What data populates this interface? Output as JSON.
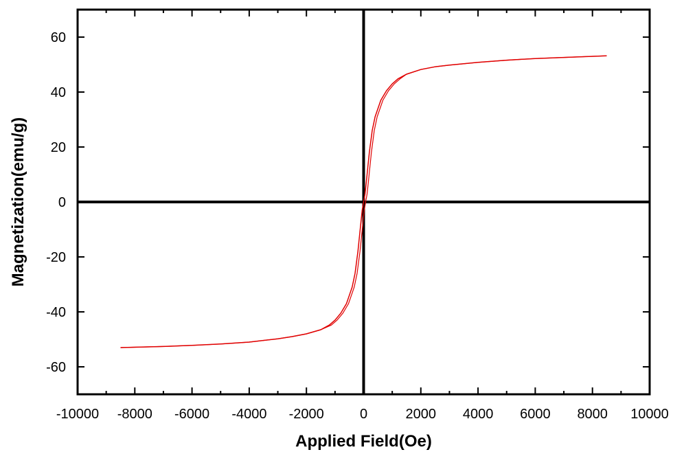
{
  "chart_data": {
    "type": "line",
    "title": "",
    "xlabel": "Applied Field(Oe)",
    "ylabel": "Magnetization(emu/g)",
    "xlim": [
      -10000,
      10000
    ],
    "ylim": [
      -70,
      70
    ],
    "x_ticks": [
      -10000,
      -8000,
      -6000,
      -4000,
      -2000,
      0,
      2000,
      4000,
      6000,
      8000,
      10000
    ],
    "y_ticks": [
      -60,
      -40,
      -20,
      0,
      20,
      40,
      60
    ],
    "x_tick_labels": [
      "-10000",
      "-8000",
      "-6000",
      "-4000",
      "-2000",
      "0",
      "2000",
      "4000",
      "6000",
      "8000",
      "10000"
    ],
    "y_tick_labels": [
      "-60",
      "-40",
      "-20",
      "0",
      "20",
      "40",
      "60"
    ],
    "zero_lines": true,
    "grid": false,
    "series": [
      {
        "color": "#e00000",
        "x": [
          -8500,
          -7000,
          -6000,
          -5000,
          -4000,
          -3000,
          -2500,
          -2000,
          -1500,
          -1200,
          -1000,
          -800,
          -600,
          -400,
          -300,
          -200,
          -100,
          -50,
          0,
          50,
          100,
          200,
          300,
          400,
          600,
          800,
          1000,
          1200,
          1500,
          2000,
          2500,
          3000,
          4000,
          5000,
          6000,
          7000,
          8500
        ],
        "y": [
          -53,
          -52.6,
          -52.2,
          -51.7,
          -51,
          -49.8,
          -49,
          -48,
          -46.5,
          -44.8,
          -43,
          -40.5,
          -37,
          -31,
          -26,
          -18,
          -8,
          -3,
          0,
          3,
          8,
          18,
          26,
          31,
          37,
          40.5,
          43,
          44.8,
          46.5,
          48.2,
          49.2,
          49.8,
          50.8,
          51.6,
          52.2,
          52.6,
          53.2
        ]
      }
    ]
  }
}
